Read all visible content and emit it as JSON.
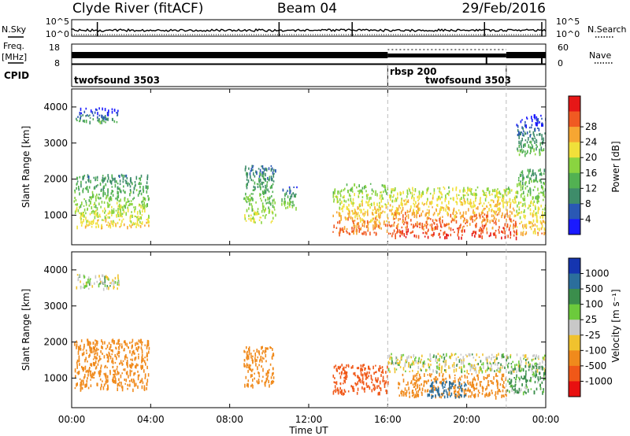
{
  "header": {
    "station": "Clyde River (fitACF)",
    "beam": "Beam 04",
    "date": "29/Feb/2016"
  },
  "nsky": {
    "label": "N.Sky",
    "ticks": [
      "10^5",
      "10^0"
    ],
    "right_label": "N.Search",
    "right_ticks": [
      "10^5",
      "10^0"
    ]
  },
  "freq": {
    "label_lines": [
      "Freq.",
      "[MHz]"
    ],
    "ticks": [
      "18",
      "8"
    ],
    "right_label": "Nave",
    "right_ticks": [
      "60",
      "0"
    ]
  },
  "cpid": {
    "label": "CPID",
    "segments": [
      {
        "name": "twofsound 3503",
        "start_h": 0,
        "end_h": 16
      },
      {
        "name": "rbsp 200",
        "start_h": 16,
        "end_h": 22
      },
      {
        "name": "twofsound 3503",
        "start_h": 22,
        "end_h": 24
      }
    ],
    "segment_labels": [
      "twofsound 3503",
      "rbsp 200",
      "twofsound 3503"
    ]
  },
  "xaxis": {
    "label": "Time UT",
    "ticks": [
      "00:00",
      "04:00",
      "08:00",
      "12:00",
      "16:00",
      "20:00",
      "00:00"
    ],
    "range_h": [
      0,
      24
    ]
  },
  "panels": [
    {
      "id": "power",
      "ylabel": "Slant Range [km]",
      "yticks": [
        "1000",
        "2000",
        "3000",
        "4000"
      ],
      "cbar_title": "Power [dB]",
      "cbar_ticks": [
        "4",
        "8",
        "12",
        "16",
        "20",
        "24",
        "28"
      ]
    },
    {
      "id": "velocity",
      "ylabel": "Slant Range [km]",
      "yticks": [
        "1000",
        "2000",
        "3000",
        "4000"
      ],
      "cbar_title": "Velocity [m s⁻¹]",
      "cbar_ticks": [
        "1000",
        "500",
        "100",
        "25",
        "-25",
        "-100",
        "-500",
        "-1000"
      ]
    }
  ],
  "colors": {
    "power": [
      "#1a1aff",
      "#2a58b4",
      "#3e8c6a",
      "#52b152",
      "#8ad440",
      "#f0e03a",
      "#f6a632",
      "#f05a22",
      "#e61717"
    ],
    "velocity": [
      "#1535b0",
      "#2b6e9c",
      "#3b8e4c",
      "#6cca3c",
      "#c8c8c8",
      "#f0c22e",
      "#f08a1c",
      "#f05818",
      "#e81010"
    ]
  },
  "chart_data": [
    {
      "type": "heatmap",
      "title": "Power",
      "xlabel": "Time UT",
      "ylabel": "Slant Range [km]",
      "xlim_h": [
        0,
        24
      ],
      "ylim_km": [
        180,
        4500
      ],
      "zlabel": "Power [dB]",
      "zlim": [
        0,
        32
      ],
      "regions": [
        {
          "t0": 0.1,
          "t1": 3.9,
          "r0": 700,
          "r1": 2150,
          "level": 16
        },
        {
          "t0": 0.2,
          "t1": 2.4,
          "r0": 3600,
          "r1": 4000,
          "level": 6
        },
        {
          "t0": 8.7,
          "t1": 10.3,
          "r0": 800,
          "r1": 2400,
          "level": 14
        },
        {
          "t0": 10.6,
          "t1": 11.4,
          "r0": 1200,
          "r1": 1800,
          "level": 12
        },
        {
          "t0": 13.2,
          "t1": 16.0,
          "r0": 500,
          "r1": 1900,
          "level": 22
        },
        {
          "t0": 16.0,
          "t1": 22.5,
          "r0": 400,
          "r1": 1800,
          "level": 25
        },
        {
          "t0": 22.5,
          "t1": 24.0,
          "r0": 500,
          "r1": 2300,
          "level": 18
        },
        {
          "t0": 22.5,
          "t1": 24.0,
          "r0": 2700,
          "r1": 3800,
          "level": 8
        }
      ]
    },
    {
      "type": "heatmap",
      "title": "Velocity",
      "xlabel": "Time UT",
      "ylabel": "Slant Range [km]",
      "xlim_h": [
        0,
        24
      ],
      "ylim_km": [
        180,
        4500
      ],
      "zlabel": "Velocity [m s^-1]",
      "regions": [
        {
          "t0": 0.1,
          "t1": 3.9,
          "r0": 700,
          "r1": 2100,
          "value": -200
        },
        {
          "t0": 0.2,
          "t1": 2.4,
          "r0": 3500,
          "r1": 3900,
          "value": 0
        },
        {
          "t0": 8.7,
          "t1": 10.2,
          "r0": 800,
          "r1": 1900,
          "value": -300
        },
        {
          "t0": 13.2,
          "t1": 16.0,
          "r0": 600,
          "r1": 1400,
          "value": -700
        },
        {
          "t0": 16.0,
          "t1": 24.0,
          "r0": 1200,
          "r1": 1700,
          "value": 0
        },
        {
          "t0": 16.5,
          "t1": 22.0,
          "r0": 500,
          "r1": 1150,
          "value": -350
        },
        {
          "t0": 18.0,
          "t1": 20.0,
          "r0": 500,
          "r1": 950,
          "value": 400
        },
        {
          "t0": 22.0,
          "t1": 24.0,
          "r0": 600,
          "r1": 1400,
          "value": 80
        }
      ]
    }
  ]
}
